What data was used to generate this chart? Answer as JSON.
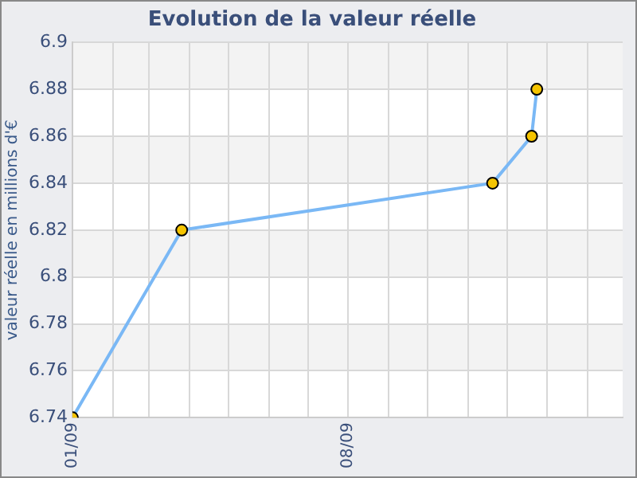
{
  "chart_data": {
    "type": "line",
    "title": "Evolution de la valeur réelle",
    "ylabel": "valeur réelle en millions d'€",
    "x": [
      "2009-01-01",
      "2009-03-26",
      "2009-11-20",
      "2009-12-20",
      "2009-12-24"
    ],
    "series": [
      {
        "color": "#7ab8f5",
        "values": [
          6.74,
          6.82,
          6.84,
          6.86,
          6.88
        ]
      }
    ],
    "xlim": [
      "2009-01-01",
      "2010-02-28"
    ],
    "xticks": [
      {
        "value": "2009-01-01",
        "label": "01/09"
      },
      {
        "value": "2009-02-01",
        "label": null
      },
      {
        "value": "2009-03-01",
        "label": null
      },
      {
        "value": "2009-04-01",
        "label": null
      },
      {
        "value": "2009-05-01",
        "label": null
      },
      {
        "value": "2009-06-01",
        "label": null
      },
      {
        "value": "2009-07-01",
        "label": null
      },
      {
        "value": "2009-08-01",
        "label": "08/09"
      },
      {
        "value": "2009-09-01",
        "label": null
      },
      {
        "value": "2009-10-01",
        "label": null
      },
      {
        "value": "2009-11-01",
        "label": null
      },
      {
        "value": "2009-12-01",
        "label": null
      },
      {
        "value": "2010-01-01",
        "label": null
      },
      {
        "value": "2010-02-01",
        "label": null
      }
    ],
    "ylim": [
      6.74,
      6.9
    ],
    "yticks": [
      6.74,
      6.76,
      6.78,
      6.8,
      6.82,
      6.84,
      6.86,
      6.88,
      6.9
    ],
    "grid": true,
    "legend": false,
    "marker": "circle",
    "line_style": "solid"
  }
}
